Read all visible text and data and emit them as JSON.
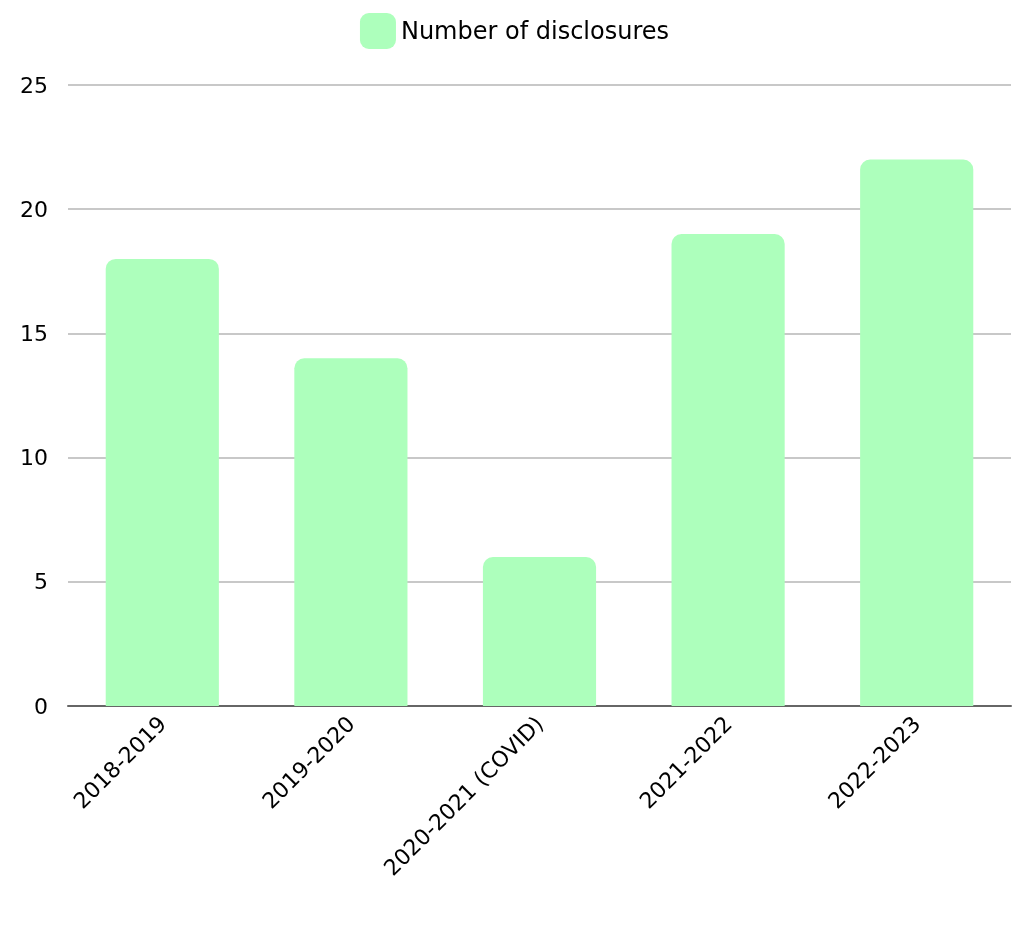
{
  "chart_data": {
    "type": "bar",
    "categories": [
      "2018-2019",
      "2019-2020",
      "2020-2021 (COVID)",
      "2021-2022",
      "2022-2023"
    ],
    "series": [
      {
        "name": "Number of disclosures",
        "color": "#adffbc",
        "values": [
          18,
          14,
          6,
          19,
          22
        ]
      }
    ],
    "ylim": [
      0,
      25
    ],
    "yticks": [
      0,
      5,
      10,
      15,
      20,
      25
    ],
    "grid": "y",
    "legend": "top"
  }
}
